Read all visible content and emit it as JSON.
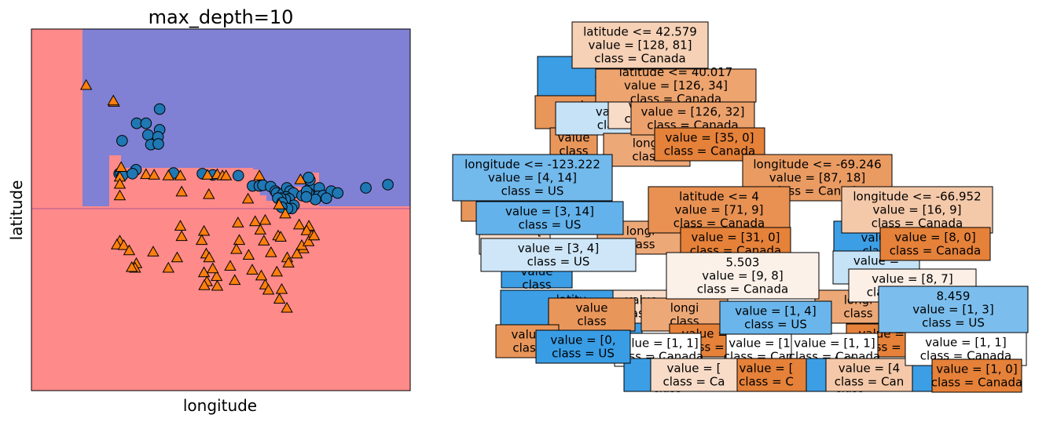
{
  "chart_data": [
    {
      "type": "scatter",
      "title": "max_depth=10",
      "xlabel": "longitude",
      "ylabel": "latitude",
      "ticks_visible": false,
      "regions": {
        "colors": {
          "Canada": "#ff8a8a",
          "US": "#8080d4"
        }
      },
      "series": [
        {
          "marker": "circle",
          "color": "#1f77b4",
          "points": [
            [
              -122.0,
              48.7
            ],
            [
              -117.5,
              51.4
            ],
            [
              -110.4,
              50.4
            ],
            [
              -110.4,
              53.6
            ],
            [
              -114.0,
              49.6
            ],
            [
              -114.6,
              51.4
            ],
            [
              -110.9,
              49.3
            ],
            [
              -113.1,
              48.1
            ],
            [
              -110.8,
              48.2
            ],
            [
              -117.7,
              44.2
            ],
            [
              -122.9,
              43.6
            ],
            [
              -106.1,
              43.7
            ],
            [
              -122.4,
              43.7
            ],
            [
              -121.9,
              43.3
            ],
            [
              -118.8,
              43.6
            ],
            [
              -97.2,
              43.6
            ],
            [
              -94.0,
              43.4
            ],
            [
              -86.1,
              43.3
            ],
            [
              -81.7,
              41.7
            ],
            [
              -79.6,
              41.7
            ],
            [
              -78.5,
              41.8
            ],
            [
              -76.1,
              41.6
            ],
            [
              -74.7,
              40.9
            ],
            [
              -74.3,
              40.6
            ],
            [
              -72.3,
              40.5
            ],
            [
              -71.1,
              41.4
            ],
            [
              -70.1,
              40.9
            ],
            [
              -69.1,
              40.6
            ],
            [
              -71.3,
              40.0
            ],
            [
              -70.4,
              39.7
            ],
            [
              -71.6,
              39.6
            ],
            [
              -73.0,
              39.8
            ],
            [
              -73.9,
              39.8
            ],
            [
              -72.6,
              39.1
            ],
            [
              -68.9,
              38.7
            ],
            [
              -69.6,
              38.2
            ],
            [
              -70.9,
              38.2
            ],
            [
              -72.7,
              38.4
            ],
            [
              -63.9,
              41.4
            ],
            [
              -64.4,
              40.6
            ],
            [
              -66.4,
              40.2
            ],
            [
              -65.0,
              40.9
            ],
            [
              -64.0,
              42.6
            ],
            [
              -64.4,
              43.0
            ],
            [
              -61.1,
              41.4
            ],
            [
              -61.4,
              40.1
            ],
            [
              -59.9,
              40.2
            ],
            [
              -57.4,
              40.9
            ],
            [
              -55.4,
              40.6
            ],
            [
              -58.9,
              39.8
            ],
            [
              -62.3,
              39.6
            ],
            [
              -65.1,
              40.0
            ],
            [
              -46.7,
              41.4
            ],
            [
              -39.9,
              41.9
            ]
          ]
        },
        {
          "marker": "triangle",
          "color": "#ff7f0e",
          "points": [
            [
              -133.1,
              57.2
            ],
            [
              -124.5,
              54.6
            ],
            [
              -124.7,
              54.8
            ],
            [
              -122.3,
              44.5
            ],
            [
              -122.7,
              43.0
            ],
            [
              -114.6,
              43.4
            ],
            [
              -112.1,
              43.3
            ],
            [
              -107.7,
              43.2
            ],
            [
              -104.0,
              43.2
            ],
            [
              -95.6,
              43.3
            ],
            [
              -92.6,
              43.4
            ],
            [
              -91.0,
              43.2
            ],
            [
              -89.9,
              43.2
            ],
            [
              -79.6,
              43.2
            ],
            [
              -66.9,
              42.6
            ],
            [
              -122.7,
              41.9
            ],
            [
              -122.7,
              40.1
            ],
            [
              -103.6,
              40.7
            ],
            [
              -95.2,
              40.3
            ],
            [
              -83.1,
              39.6
            ],
            [
              -73.5,
              38.7
            ],
            [
              -71.6,
              37.3
            ],
            [
              -77.8,
              36.3
            ],
            [
              -86.2,
              35.9
            ],
            [
              -104.0,
              35.4
            ],
            [
              -96.7,
              34.6
            ],
            [
              -80.9,
              36.1
            ],
            [
              -79.3,
              34.8
            ],
            [
              -73.8,
              33.9
            ],
            [
              -67.3,
              35.6
            ],
            [
              -64.3,
              35.4
            ],
            [
              -65.0,
              34.7
            ],
            [
              -63.4,
              33.9
            ],
            [
              -73.0,
              33.7
            ],
            [
              -78.2,
              33.1
            ],
            [
              -85.8,
              33.2
            ],
            [
              -97.4,
              33.2
            ],
            [
              -103.6,
              33.8
            ],
            [
              -122.7,
              33.1
            ],
            [
              -123.6,
              32.5
            ],
            [
              -121.5,
              32.4
            ],
            [
              -119.8,
              31.6
            ],
            [
              -112.4,
              31.4
            ],
            [
              -96.0,
              31.1
            ],
            [
              -86.7,
              31.8
            ],
            [
              -76.0,
              31.3
            ],
            [
              -66.0,
              31.9
            ],
            [
              -68.0,
              31.1
            ],
            [
              -71.0,
              30.5
            ],
            [
              -82.9,
              30.9
            ],
            [
              -95.1,
              30.5
            ],
            [
              -105.0,
              30.5
            ],
            [
              -117.6,
              29.6
            ],
            [
              -118.0,
              28.9
            ],
            [
              -119.0,
              29.0
            ],
            [
              -107.7,
              28.9
            ],
            [
              -96.7,
              28.2
            ],
            [
              -88.6,
              29.2
            ],
            [
              -81.8,
              28.6
            ],
            [
              -87.2,
              27.0
            ],
            [
              -95.8,
              26.8
            ],
            [
              -96.6,
              26.2
            ],
            [
              -92.6,
              26.1
            ],
            [
              -77.8,
              26.3
            ],
            [
              -76.8,
              25.5
            ],
            [
              -72.7,
              25.6
            ],
            [
              -73.4,
              24.1
            ],
            [
              -71.1,
              22.7
            ],
            [
              -92.8,
              27.6
            ],
            [
              -94.0,
              28.8
            ],
            [
              -79.0,
              27.7
            ],
            [
              -74.2,
              28.3
            ],
            [
              -70.6,
              29.7
            ],
            [
              -66.5,
              32.4
            ],
            [
              -64.4,
              33.0
            ],
            [
              -62.7,
              33.9
            ]
          ]
        }
      ]
    },
    {
      "type": "tree",
      "nodes": [
        {
          "lines": [
            "latitude <= 42.579",
            "value = [128, 81]",
            "class = Canada"
          ],
          "color": "#f6d1b6"
        },
        {
          "lines": [
            "latitude <= 40.017",
            "value = [126, 34]",
            "class = Canada"
          ],
          "color": "#eda46f"
        },
        {
          "lines": [
            "value = [126, 32]",
            "class = Canada"
          ],
          "color": "#eca16c"
        },
        {
          "lines": [
            "value = [35, 0]",
            "class = Canada"
          ],
          "color": "#e58139"
        },
        {
          "lines": [
            "longitude <= -123.222",
            "value = [4, 14]",
            "class = US"
          ],
          "color": "#72b9ec"
        },
        {
          "lines": [
            "longitude <= -69.246",
            "value = [87, 18]",
            "class = Canada"
          ],
          "color": "#ea9b62"
        },
        {
          "lines": [
            "latitude <= 4",
            "value = [71, 9]",
            "class = Canada"
          ],
          "color": "#e89152"
        },
        {
          "lines": [
            "longitude <= -66.952",
            "value = [16, 9]",
            "class = Canada"
          ],
          "color": "#f4c9a9"
        },
        {
          "lines": [
            "value = [3, 14]",
            "class = US"
          ],
          "color": "#63b2eb"
        },
        {
          "lines": [
            "value = [31, 0]",
            "class = Canada"
          ],
          "color": "#e58139"
        },
        {
          "lines": [
            "value = [8, 0]",
            "class = Canada"
          ],
          "color": "#e58139"
        },
        {
          "lines": [
            "value = [3, 4]",
            "class = US"
          ],
          "color": "#cee6f8"
        },
        {
          "lines": [
            "5.503",
            "value = [9, 8]",
            "class = Canada"
          ],
          "color": "#fcf1e9"
        },
        {
          "lines": [
            "value = [8, 7]",
            "class = Canada"
          ],
          "color": "#fcefe6"
        },
        {
          "lines": [
            "value = [1, 4]",
            "class = US"
          ],
          "color": "#6ab6ec"
        },
        {
          "lines": [
            "8.459",
            "value = [1, 3]",
            "class = US"
          ],
          "color": "#7bbeee"
        },
        {
          "lines": [
            "value = [1, 1]",
            "class = Canada"
          ],
          "color": "#ffffff"
        },
        {
          "lines": [
            "value = [1, 0]",
            "class = Canada"
          ],
          "color": "#e58139"
        },
        {
          "lines": [
            "value = [0,",
            "class = US"
          ],
          "color": "#399de5"
        },
        {
          "lines": [
            "latitu",
            "value",
            "class"
          ],
          "color": "#3c9ee5"
        },
        {
          "lines": [
            "value =",
            "class ="
          ],
          "color": "#c5e2f7"
        },
        {
          "lines": [
            "value",
            "class"
          ],
          "color": "#e9965a"
        },
        {
          "lines": [
            "value = [4",
            "class = Can"
          ],
          "color": "#f4c8a8"
        },
        {
          "lines": [
            "value = [",
            "class = Ca"
          ],
          "color": "#f8dcc8"
        },
        {
          "lines": [
            "longi",
            "class"
          ],
          "color": "#eda877"
        },
        {
          "lines": [
            "value = [",
            "class = C"
          ],
          "color": "#e58139"
        }
      ]
    }
  ]
}
